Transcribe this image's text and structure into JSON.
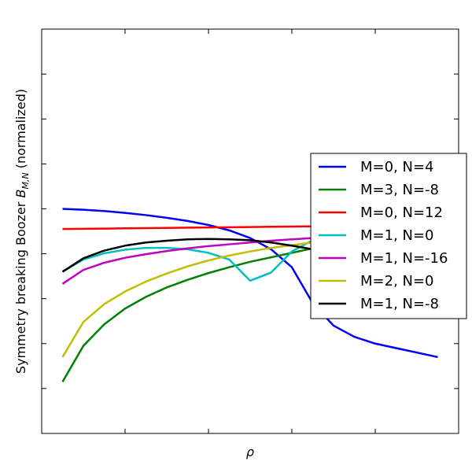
{
  "chart_data": {
    "type": "line",
    "title": "",
    "xlabel": "ρ",
    "ylabel_prefix": "Symmetry breaking Boozer ",
    "ylabel_symbol": "B",
    "ylabel_subscript": "M,N",
    "ylabel_suffix": " (normalized)",
    "y_scale": "log",
    "xlim": [
      0,
      1
    ],
    "ylim_decades": [
      -8,
      1
    ],
    "x_ticks": [
      0.2,
      0.4,
      0.6,
      0.8
    ],
    "y_tick_exponents": [
      -8,
      -7,
      -6,
      -5,
      -4,
      -3,
      -2,
      -1,
      0
    ],
    "grid": false,
    "legend_position": "right",
    "x": [
      0.05,
      0.1,
      0.15,
      0.2,
      0.25,
      0.3,
      0.35,
      0.4,
      0.45,
      0.5,
      0.55,
      0.6,
      0.65,
      0.7,
      0.75,
      0.8,
      0.85,
      0.9,
      0.95
    ],
    "series": [
      {
        "name": "M=0, N=4",
        "color": "#0000ff",
        "values_log10": [
          -3.0,
          -3.02,
          -3.05,
          -3.09,
          -3.14,
          -3.2,
          -3.27,
          -3.36,
          -3.48,
          -3.65,
          -3.9,
          -4.3,
          -5.1,
          -5.6,
          -5.85,
          -6.0,
          -6.1,
          -6.2,
          -6.3
        ]
      },
      {
        "name": "M=3, N=-8",
        "color": "#008000",
        "values_log10": [
          -6.85,
          -6.05,
          -5.57,
          -5.22,
          -4.96,
          -4.75,
          -4.58,
          -4.43,
          -4.3,
          -4.18,
          -4.08,
          -3.98,
          -3.88,
          -3.8,
          -3.72,
          -3.66,
          -3.6,
          -3.56,
          -3.53
        ]
      },
      {
        "name": "M=0, N=12",
        "color": "#ff0000",
        "values_log10": [
          -3.45,
          -3.445,
          -3.44,
          -3.435,
          -3.43,
          -3.425,
          -3.42,
          -3.415,
          -3.41,
          -3.405,
          -3.4,
          -3.395,
          -3.39,
          -3.385,
          -3.38,
          -3.375,
          -3.37,
          -3.365,
          -3.36
        ]
      },
      {
        "name": "M=1, N=0",
        "color": "#00bfbf",
        "values_log10": [
          -4.4,
          -4.13,
          -3.99,
          -3.91,
          -3.87,
          -3.87,
          -3.9,
          -3.98,
          -4.13,
          -4.6,
          -4.42,
          -3.95,
          -3.7,
          -3.6,
          -3.55,
          -3.52,
          -3.5,
          -3.49,
          -3.48
        ]
      },
      {
        "name": "M=1, N=-16",
        "color": "#bf00bf",
        "values_log10": [
          -4.67,
          -4.36,
          -4.2,
          -4.09,
          -4.01,
          -3.94,
          -3.88,
          -3.83,
          -3.79,
          -3.75,
          -3.71,
          -3.68,
          -3.65,
          -3.62,
          -3.6,
          -3.58,
          -3.56,
          -3.54,
          -3.53
        ]
      },
      {
        "name": "M=2, N=0",
        "color": "#bfbf00",
        "values_log10": [
          -6.3,
          -5.52,
          -5.12,
          -4.84,
          -4.62,
          -4.44,
          -4.28,
          -4.15,
          -4.04,
          -3.95,
          -3.87,
          -3.81,
          -3.75,
          -3.7,
          -3.66,
          -3.62,
          -3.59,
          -3.56,
          -3.53
        ]
      },
      {
        "name": "M=1, N=-8",
        "color": "#000000",
        "values_log10": [
          -4.4,
          -4.1,
          -3.93,
          -3.82,
          -3.75,
          -3.71,
          -3.68,
          -3.67,
          -3.68,
          -3.7,
          -3.75,
          -3.82,
          -3.9,
          -4.0,
          -4.1,
          -4.2,
          -4.3,
          -4.4,
          -4.5
        ]
      }
    ]
  }
}
